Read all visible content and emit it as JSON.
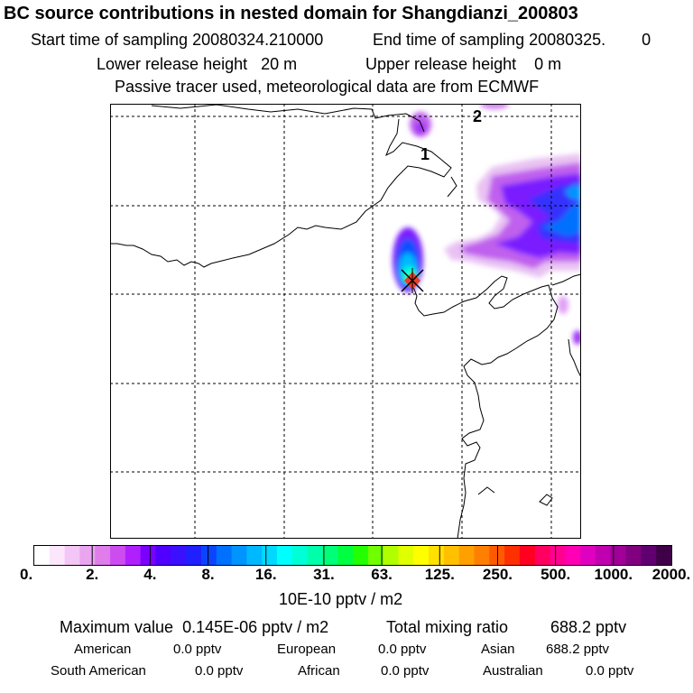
{
  "header": {
    "title": "BC  source contributions in nested domain for Shangdianzi_200803",
    "start_label": "Start time of sampling 20080324.210000",
    "end_label": "End time of sampling 20080325.",
    "end_suffix": "0",
    "lower_label": "Lower release height",
    "lower_value": "20 m",
    "upper_label": "Upper release height",
    "upper_value": "0 m",
    "tracer_note": "Passive tracer used, meteorological data are from ECMWF"
  },
  "map": {
    "grid_labels": [
      "1",
      "2"
    ],
    "receptor": "Shangdianzi"
  },
  "colorbar": {
    "tick_labels": [
      "0.",
      "2.",
      "4.",
      "8.",
      "16.",
      "31.",
      "63.",
      "125.",
      "250.",
      "500.",
      "1000.",
      "2000."
    ],
    "units": "10E-10 pptv / m2",
    "colors": [
      "#ffffff",
      "#fbe6fc",
      "#f3c6f6",
      "#eaa4f0",
      "#df7deb",
      "#cc4cf0",
      "#b020ff",
      "#7a00ff",
      "#4f00ff",
      "#3a10ff",
      "#2020ff",
      "#0a44ff",
      "#0070ff",
      "#0094ff",
      "#00b8ff",
      "#00d8ff",
      "#00ffff",
      "#00ffd6",
      "#00ffaa",
      "#00ff78",
      "#00ff40",
      "#22ff00",
      "#70ff00",
      "#b0ff00",
      "#e0ff00",
      "#ffff00",
      "#ffe000",
      "#ffc000",
      "#ffa000",
      "#ff8000",
      "#ff5a00",
      "#ff3000",
      "#ff0020",
      "#ff0060",
      "#ff0090",
      "#ff00b4",
      "#e000c0",
      "#c000b0",
      "#a00098",
      "#800080",
      "#600070",
      "#400048"
    ]
  },
  "stats": {
    "max_label": "Maximum value",
    "max_value": "0.145E-06 pptv / m2",
    "total_label": "Total mixing ratio",
    "total_value": "688.2 pptv",
    "american_label": "American",
    "american_value": "0.0 pptv",
    "european_label": "European",
    "european_value": "0.0 pptv",
    "asian_label": "Asian",
    "asian_value": "688.2 pptv",
    "south_american_label": "South American",
    "south_american_value": "0.0 pptv",
    "african_label": "African",
    "african_value": "0.0 pptv",
    "australian_label": "Australian",
    "australian_value": "0.0 pptv"
  }
}
